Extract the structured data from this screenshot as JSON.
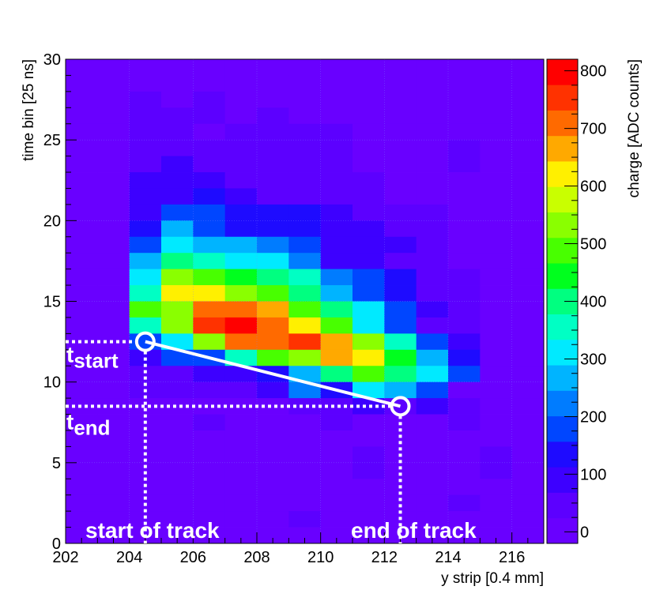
{
  "chart_data": {
    "type": "heatmap",
    "xlabel": "y strip [0.4 mm]",
    "ylabel": "time bin [25 ns]",
    "colorbar_label": "charge [ADC counts]",
    "xlim": [
      202,
      217
    ],
    "ylim": [
      0,
      30
    ],
    "x_ticks": [
      202,
      204,
      206,
      208,
      210,
      212,
      214,
      216
    ],
    "y_ticks": [
      0,
      5,
      10,
      15,
      20,
      25,
      30
    ],
    "colorbar_range": [
      -20,
      820
    ],
    "colorbar_ticks": [
      0,
      100,
      200,
      300,
      400,
      500,
      600,
      700,
      800
    ],
    "grid": true,
    "cell_columns_x_start": [
      202,
      203,
      204,
      205,
      206,
      207,
      208,
      209,
      210,
      211,
      212,
      213,
      214,
      215,
      216
    ],
    "cell_rows_y_start": [
      29,
      28,
      27,
      26,
      25,
      24,
      23,
      22,
      21,
      20,
      19,
      18,
      17,
      16,
      15,
      14,
      13,
      12,
      11,
      10,
      9,
      8,
      7,
      6,
      5,
      4,
      3,
      2,
      1,
      0
    ],
    "values": [
      [
        0,
        0,
        0,
        0,
        0,
        0,
        0,
        0,
        0,
        0,
        0,
        0,
        0,
        0,
        0
      ],
      [
        0,
        0,
        0,
        0,
        0,
        0,
        0,
        0,
        0,
        0,
        0,
        0,
        0,
        0,
        0
      ],
      [
        0,
        0,
        40,
        0,
        40,
        0,
        0,
        0,
        0,
        0,
        0,
        0,
        0,
        0,
        0
      ],
      [
        0,
        0,
        40,
        40,
        40,
        0,
        40,
        0,
        0,
        0,
        0,
        0,
        0,
        0,
        0
      ],
      [
        0,
        0,
        40,
        40,
        0,
        40,
        40,
        40,
        40,
        0,
        0,
        0,
        0,
        0,
        0
      ],
      [
        0,
        0,
        40,
        40,
        40,
        40,
        40,
        25,
        40,
        0,
        0,
        0,
        60,
        0,
        0
      ],
      [
        0,
        0,
        40,
        80,
        40,
        40,
        40,
        40,
        40,
        0,
        0,
        0,
        60,
        0,
        0
      ],
      [
        0,
        0,
        70,
        70,
        70,
        40,
        40,
        40,
        40,
        40,
        0,
        0,
        0,
        0,
        0
      ],
      [
        0,
        0,
        70,
        70,
        120,
        70,
        40,
        40,
        40,
        40,
        0,
        0,
        0,
        0,
        0
      ],
      [
        0,
        0,
        70,
        190,
        200,
        150,
        130,
        130,
        90,
        40,
        40,
        40,
        0,
        0,
        0
      ],
      [
        0,
        0,
        130,
        270,
        200,
        150,
        130,
        130,
        70,
        70,
        40,
        40,
        0,
        0,
        0
      ],
      [
        0,
        0,
        170,
        320,
        280,
        270,
        220,
        170,
        70,
        70,
        70,
        40,
        0,
        0,
        0
      ],
      [
        0,
        0,
        270,
        420,
        350,
        330,
        290,
        230,
        110,
        70,
        40,
        40,
        0,
        0,
        0
      ],
      [
        0,
        0,
        330,
        530,
        500,
        450,
        380,
        350,
        210,
        170,
        120,
        40,
        40,
        0,
        0
      ],
      [
        0,
        0,
        370,
        600,
        610,
        550,
        470,
        420,
        260,
        180,
        120,
        40,
        40,
        0,
        0
      ],
      [
        0,
        0,
        470,
        530,
        720,
        700,
        660,
        500,
        420,
        330,
        170,
        70,
        40,
        0,
        0
      ],
      [
        0,
        0,
        350,
        540,
        770,
        800,
        700,
        610,
        500,
        330,
        200,
        60,
        60,
        0,
        0
      ],
      [
        0,
        0,
        170,
        300,
        520,
        700,
        720,
        770,
        680,
        540,
        340,
        170,
        100,
        0,
        0
      ],
      [
        0,
        0,
        100,
        170,
        170,
        360,
        470,
        520,
        680,
        620,
        440,
        270,
        150,
        0,
        0
      ],
      [
        0,
        0,
        60,
        60,
        100,
        100,
        120,
        260,
        390,
        490,
        410,
        330,
        160,
        0,
        0
      ],
      [
        0,
        0,
        40,
        40,
        60,
        60,
        100,
        220,
        120,
        300,
        250,
        200,
        0,
        0,
        0
      ],
      [
        0,
        0,
        0,
        0,
        0,
        0,
        20,
        30,
        60,
        70,
        40,
        70,
        40,
        0,
        0
      ],
      [
        0,
        0,
        0,
        0,
        40,
        0,
        0,
        0,
        40,
        0,
        0,
        0,
        40,
        0,
        0
      ],
      [
        0,
        0,
        0,
        0,
        0,
        0,
        0,
        0,
        0,
        0,
        0,
        0,
        0,
        0,
        0
      ],
      [
        0,
        0,
        0,
        0,
        0,
        0,
        0,
        0,
        0,
        40,
        0,
        0,
        0,
        40,
        0
      ],
      [
        0,
        0,
        0,
        0,
        0,
        0,
        0,
        0,
        0,
        40,
        0,
        0,
        0,
        40,
        0
      ],
      [
        0,
        0,
        0,
        0,
        0,
        0,
        0,
        0,
        0,
        0,
        0,
        0,
        0,
        0,
        0
      ],
      [
        0,
        0,
        0,
        0,
        0,
        0,
        0,
        0,
        0,
        0,
        0,
        0,
        40,
        0,
        0
      ],
      [
        0,
        0,
        0,
        0,
        0,
        0,
        0,
        40,
        0,
        0,
        0,
        0,
        0,
        0,
        0
      ],
      [
        0,
        0,
        0,
        0,
        0,
        0,
        0,
        0,
        0,
        0,
        0,
        0,
        0,
        0,
        0
      ]
    ],
    "track": {
      "start": {
        "x": 204.5,
        "y": 12.5
      },
      "end": {
        "x": 212.5,
        "y": 8.5
      }
    },
    "annotations": {
      "t_start_base": "t",
      "t_start_sub": "start",
      "t_end_base": "t",
      "t_end_sub": "end",
      "start_of_track": "start of track",
      "end_of_track": "end of track"
    }
  },
  "palette": [
    "#6900ff",
    "#5c00ff",
    "#3d00ff",
    "#1e0bff",
    "#0046ff",
    "#007cff",
    "#00b4ff",
    "#00eaff",
    "#00ffc4",
    "#00ff80",
    "#00ff1e",
    "#48ff00",
    "#8aff00",
    "#c9ff00",
    "#fff000",
    "#ffa900",
    "#ff6a00",
    "#ff3200",
    "#ff0000"
  ],
  "colors": {
    "overlay": "#ffffff",
    "axis": "#000000",
    "grid": "#7f7fff"
  }
}
